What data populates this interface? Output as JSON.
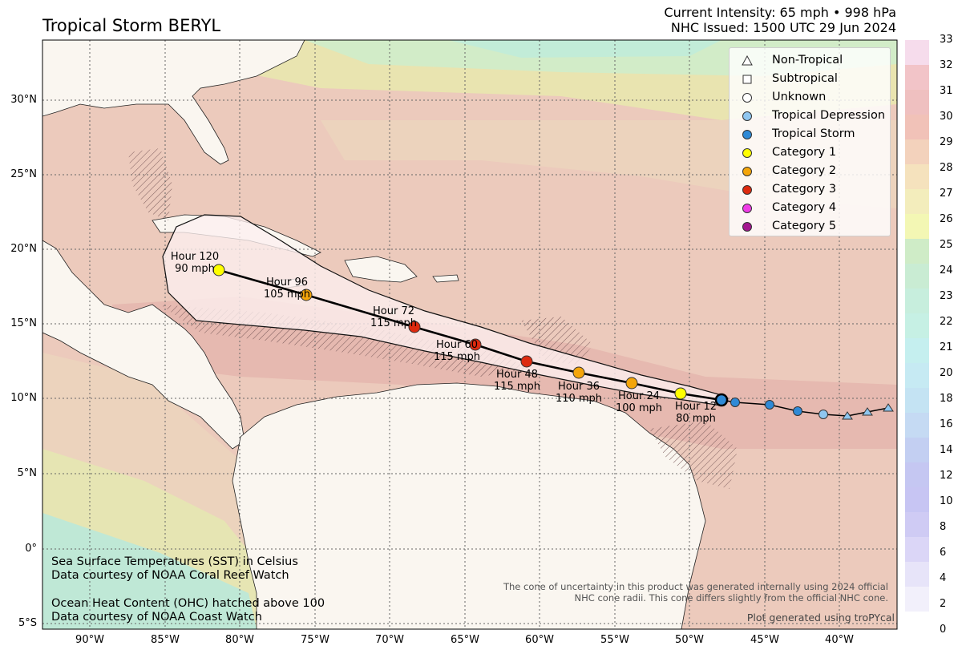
{
  "header": {
    "title": "Tropical Storm BERYL",
    "intensity": "Current Intensity: 65 mph • 998 hPa",
    "issued": "NHC Issued: 1500 UTC 29 Jun 2024"
  },
  "legend": [
    {
      "label": "Non-Tropical",
      "symbol": "triangle",
      "color": "#ffffff"
    },
    {
      "label": "Subtropical",
      "symbol": "square",
      "color": "#ffffff"
    },
    {
      "label": "Unknown",
      "symbol": "circle",
      "color": "#ffffff"
    },
    {
      "label": "Tropical Depression",
      "symbol": "circle",
      "color": "#8fc6ef"
    },
    {
      "label": "Tropical Storm",
      "symbol": "circle",
      "color": "#2f8ad6"
    },
    {
      "label": "Category 1",
      "symbol": "circle",
      "color": "#ffff00"
    },
    {
      "label": "Category 2",
      "symbol": "circle",
      "color": "#f4a50a"
    },
    {
      "label": "Category 3",
      "symbol": "circle",
      "color": "#dd2a0f"
    },
    {
      "label": "Category 4",
      "symbol": "circle",
      "color": "#ef3ce6"
    },
    {
      "label": "Category 5",
      "symbol": "circle",
      "color": "#a3178f"
    }
  ],
  "forecast_points": [
    {
      "hour": "Hour 12",
      "wind": "80 mph",
      "color": "#ffff00"
    },
    {
      "hour": "Hour 24",
      "wind": "100 mph",
      "color": "#f4a50a"
    },
    {
      "hour": "Hour 36",
      "wind": "110 mph",
      "color": "#f4a50a"
    },
    {
      "hour": "Hour 48",
      "wind": "115 mph",
      "color": "#dd2a0f"
    },
    {
      "hour": "Hour 60",
      "wind": "115 mph",
      "color": "#dd2a0f"
    },
    {
      "hour": "Hour 72",
      "wind": "115 mph",
      "color": "#dd2a0f"
    },
    {
      "hour": "Hour 96",
      "wind": "105 mph",
      "color": "#f4a50a"
    },
    {
      "hour": "Hour 120",
      "wind": "90 mph",
      "color": "#ffff00"
    }
  ],
  "notes": {
    "sst_line1": "Sea Surface Temperatures (SST) in Celsius",
    "sst_line2": "Data courtesy of NOAA Coral Reef Watch",
    "ohc_line1": "Ocean Heat Content (OHC) hatched above 100",
    "ohc_line2": "Data courtesy of NOAA Coast Watch",
    "disclaimer_line1": "The cone of uncertainty in this product was generated internally using 2024 official",
    "disclaimer_line2": "NHC cone radii. This cone differs slightly from the official NHC cone.",
    "credit": "Plot generated using troPYcal"
  },
  "axes": {
    "lat_labels": [
      "30°N",
      "25°N",
      "20°N",
      "15°N",
      "10°N",
      "5°N",
      "0°",
      "5°S"
    ],
    "lon_labels": [
      "90°W",
      "85°W",
      "80°W",
      "75°W",
      "70°W",
      "65°W",
      "60°W",
      "55°W",
      "50°W",
      "45°W",
      "40°W"
    ]
  },
  "colorbar": {
    "ticks": [
      "33",
      "32",
      "31",
      "30",
      "29",
      "28",
      "27",
      "26",
      "25",
      "24",
      "23",
      "22",
      "21",
      "20",
      "18",
      "16",
      "14",
      "12",
      "10",
      "8",
      "6",
      "4",
      "2",
      "0"
    ]
  }
}
